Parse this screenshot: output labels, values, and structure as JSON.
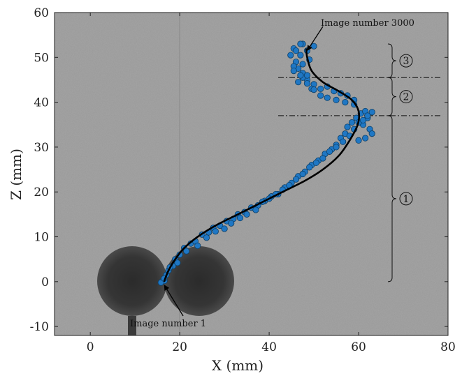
{
  "chart_data": {
    "type": "scatter",
    "xlabel": "X (mm)",
    "ylabel": "Z (mm)",
    "xlim": [
      -8,
      80
    ],
    "ylim": [
      -12,
      60
    ],
    "xticks": [
      "0",
      "20",
      "40",
      "60",
      "80"
    ],
    "xtick_values": [
      0,
      20,
      40,
      60,
      80
    ],
    "yticks": [
      "-10",
      "0",
      "10",
      "20",
      "30",
      "40",
      "50",
      "60"
    ],
    "ytick_values": [
      -10,
      0,
      10,
      20,
      30,
      40,
      50,
      60
    ],
    "grid": false,
    "background": "grayscale image",
    "point_color": "#1f77c4",
    "curve_color": "#000000",
    "trajectory_fit": {
      "x": [
        16.5,
        17.5,
        19,
        21,
        24,
        28,
        33,
        38,
        43,
        48,
        52,
        55.5,
        58,
        59.8,
        60,
        58.5,
        55.5,
        52,
        49.5,
        48.5,
        48.3
      ],
      "z": [
        0,
        2.5,
        5,
        7.5,
        10,
        12.5,
        15,
        17.5,
        20,
        22.5,
        25,
        28,
        31.5,
        35,
        38,
        40.5,
        42.5,
        44.5,
        47,
        50,
        52
      ]
    },
    "points": {
      "x": [
        16,
        16.6,
        17,
        17.5,
        18.5,
        19,
        20,
        21,
        22.5,
        23.5,
        25,
        26.5,
        27.5,
        29,
        30.5,
        32,
        33,
        34.5,
        36,
        37.5,
        39,
        40.5,
        42,
        43.5,
        45,
        46.5,
        48,
        49.5,
        51,
        52.5,
        54,
        55,
        56,
        57,
        57.5,
        58.5,
        59.5,
        60.5,
        61.5,
        62,
        61,
        62.5,
        63,
        61.5,
        60,
        59,
        57.5,
        56,
        54.5,
        53,
        51.5,
        50,
        48.5,
        47.5,
        46.5,
        46,
        47,
        48.5,
        50,
        45.5,
        46.5,
        47.5,
        48.5,
        49.5,
        47.5,
        15.8,
        16.5,
        17.8,
        19.5,
        21.5,
        24,
        26,
        28,
        30,
        31.5,
        33.5,
        35,
        37,
        38.5,
        40,
        41.5,
        43,
        44.5,
        46,
        47.5,
        49,
        50.5,
        52,
        53.5,
        55,
        56.5,
        58,
        59,
        60,
        61,
        62,
        63,
        59,
        57,
        55,
        53,
        51.5,
        50,
        48.5,
        47,
        45.5,
        47.5,
        49,
        44.8,
        45.5,
        46,
        47
      ],
      "z": [
        0,
        0.2,
        1.5,
        2.5,
        3.5,
        5,
        6,
        7.5,
        8.5,
        9,
        10.5,
        11,
        12,
        12.5,
        13.5,
        14,
        15,
        15.5,
        16.5,
        17,
        18,
        19,
        19.5,
        21,
        22,
        23.5,
        24.5,
        26,
        27,
        28.5,
        29.5,
        30.5,
        32,
        33,
        34.5,
        35.5,
        36.5,
        37.5,
        38,
        36.5,
        35,
        34,
        33,
        32,
        31.5,
        40.5,
        41.5,
        42,
        42.5,
        43.5,
        43,
        44,
        45,
        46.5,
        47.5,
        49,
        50.5,
        51.5,
        52.5,
        48,
        44.5,
        45.5,
        46,
        43,
        53,
        -0.2,
        0.7,
        3.2,
        4.2,
        6.8,
        8,
        9.8,
        11.2,
        11.8,
        13,
        14.2,
        15,
        16,
        17.8,
        18.5,
        19.5,
        20.5,
        21.5,
        22.8,
        24,
        25.5,
        26.5,
        27.5,
        29,
        30,
        31.2,
        32.5,
        34,
        35.5,
        36,
        37,
        37.8,
        39.5,
        40,
        40.5,
        41,
        41.5,
        42.8,
        44.2,
        46,
        47,
        48.5,
        49.5,
        50.5,
        52,
        51.5,
        53
      ],
      "legend_labels": []
    },
    "annotations": [
      {
        "text": "Image number 3000",
        "x": 48.3,
        "z": 52
      },
      {
        "text": "Image number 1",
        "x": 16.5,
        "z": 0
      }
    ],
    "thresholds": [
      {
        "z": 37,
        "style": "dash-dot"
      },
      {
        "z": 45.5,
        "style": "dash-dot"
      }
    ],
    "zones": [
      {
        "label": "1",
        "z_range": [
          0,
          37
        ]
      },
      {
        "label": "2",
        "z_range": [
          37,
          45.5
        ]
      },
      {
        "label": "3",
        "z_range": [
          45.5,
          53
        ]
      }
    ]
  }
}
